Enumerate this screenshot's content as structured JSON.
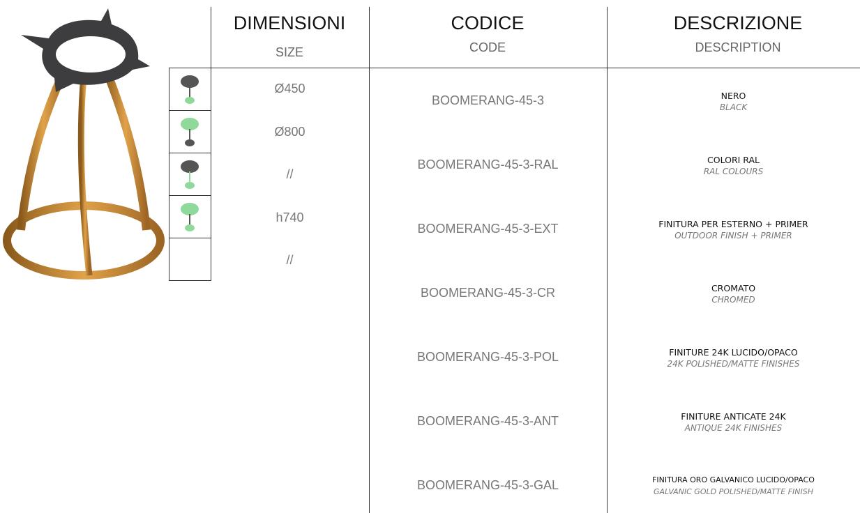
{
  "headers": [
    {
      "title": "DIMENSIONI",
      "subtitle": "SIZE"
    },
    {
      "title": "CODICE",
      "subtitle": "CODE"
    },
    {
      "title": "DESCRIZIONE",
      "subtitle": "DESCRIPTION"
    }
  ],
  "sizes": [
    "Ø450",
    "Ø800",
    "//",
    "h740",
    "//"
  ],
  "codes": [
    "BOOMERANG-45-3",
    "BOOMERANG-45-3-RAL",
    "BOOMERANG-45-3-EXT",
    "BOOMERANG-45-3-CR",
    "BOOMERANG-45-3-POL",
    "BOOMERANG-45-3-ANT",
    "BOOMERANG-45-3-GAL"
  ],
  "descriptions": [
    {
      "it": "NERO",
      "en": "BLACK"
    },
    {
      "it": "COLORI RAL",
      "en": "RAL COLOURS"
    },
    {
      "it": "FINITURA PER ESTERNO + PRIMER",
      "en": "OUTDOOR FINISH + PRIMER"
    },
    {
      "it": "CROMATO",
      "en": "CHROMED"
    },
    {
      "it": "FINITURE 24K LUCIDO/OPACO",
      "en": "24K POLISHED/MATTE FINISHES"
    },
    {
      "it": "FINITURE ANTICATE 24K",
      "en": "ANTIQUE 24K FINISHES"
    },
    {
      "it": "FINITURA ORO GALVANICO LUCIDO/OPACO",
      "en": "GALVANIC GOLD POLISHED/MATTE FINISH"
    }
  ]
}
